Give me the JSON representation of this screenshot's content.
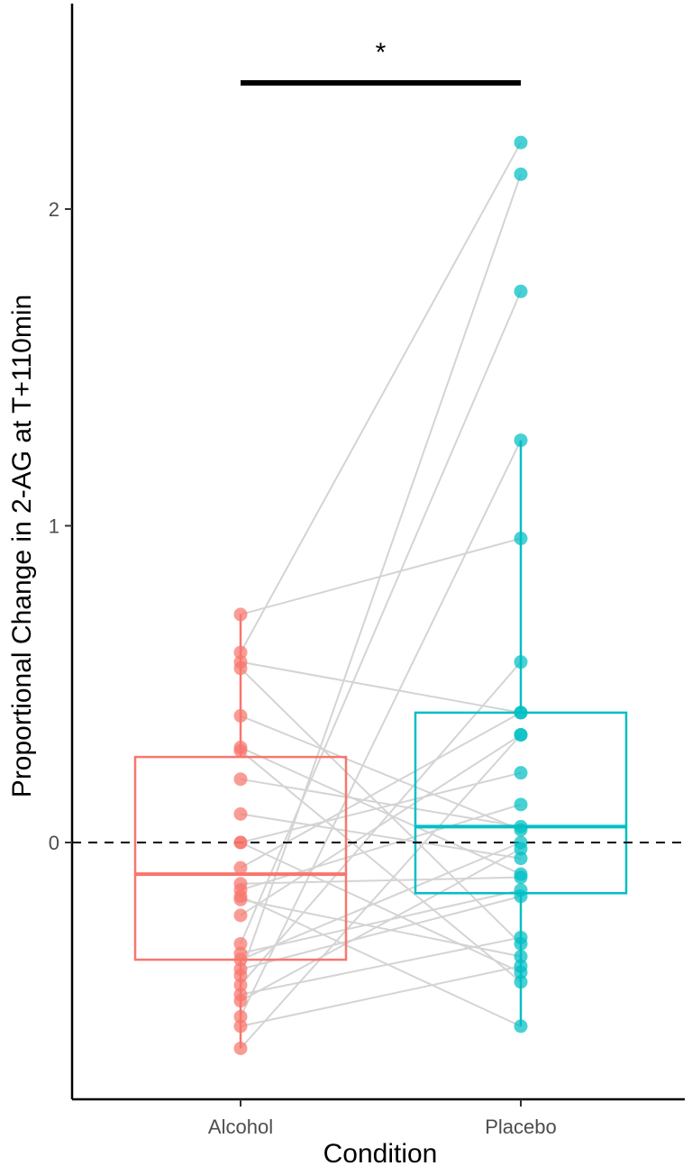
{
  "chart_data": {
    "type": "box",
    "title": "",
    "xlabel": "Condition",
    "ylabel": "Proportional Change in 2-AG at T+110min",
    "categories": [
      "Alcohol",
      "Placebo"
    ],
    "ylim": [
      -0.8,
      2.65
    ],
    "yticks": [
      0,
      1,
      2
    ],
    "ytick_labels": [
      "0",
      "1",
      "2"
    ],
    "reference_line": {
      "y": 0,
      "style": "dashed"
    },
    "significance": {
      "label": "*",
      "between": [
        "Alcohol",
        "Placebo"
      ]
    },
    "grid": false,
    "legend": "none",
    "colors": {
      "Alcohol": "#F8766D",
      "Placebo": "#00BFC4",
      "pair_line": "#d4d4d4",
      "axis": "#000000"
    },
    "boxes": [
      {
        "category": "Alcohol",
        "q1": -0.37,
        "median": -0.1,
        "q3": 0.27,
        "whisker_low": -0.65,
        "whisker_high": 0.72
      },
      {
        "category": "Placebo",
        "q1": -0.16,
        "median": 0.05,
        "q3": 0.41,
        "whisker_low": -0.58,
        "whisker_high": 1.27
      }
    ],
    "pairs": [
      [
        0.72,
        0.96
      ],
      [
        0.6,
        2.21
      ],
      [
        0.57,
        0.41
      ],
      [
        0.55,
        -0.32
      ],
      [
        0.4,
        0.04
      ],
      [
        0.3,
        -0.1
      ],
      [
        0.29,
        -0.44
      ],
      [
        0.2,
        0.05
      ],
      [
        0.09,
        -0.05
      ],
      [
        0.0,
        0.22
      ],
      [
        0.0,
        -0.41
      ],
      [
        -0.08,
        0.41
      ],
      [
        -0.13,
        -0.11
      ],
      [
        -0.15,
        0.12
      ],
      [
        -0.17,
        -0.58
      ],
      [
        -0.18,
        -0.36
      ],
      [
        -0.23,
        0.34
      ],
      [
        -0.32,
        1.74
      ],
      [
        -0.35,
        -0.15
      ],
      [
        -0.37,
        0.0
      ],
      [
        -0.4,
        -0.17
      ],
      [
        -0.42,
        2.11
      ],
      [
        -0.45,
        0.57
      ],
      [
        -0.48,
        -0.3
      ],
      [
        -0.5,
        -0.02
      ],
      [
        -0.55,
        1.27
      ],
      [
        -0.58,
        -0.39
      ],
      [
        -0.65,
        0.34
      ]
    ]
  }
}
